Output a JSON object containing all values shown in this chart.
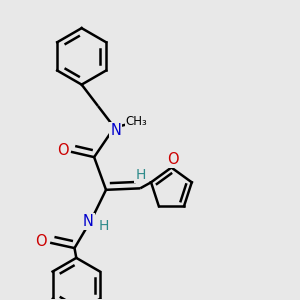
{
  "bg_color": "#e8e8e8",
  "atom_colors": {
    "C": "#000000",
    "N": "#0000cc",
    "O": "#cc0000",
    "H": "#2e8b8b"
  },
  "bond_color": "#000000",
  "bond_width": 1.8,
  "figsize": [
    3.0,
    3.0
  ],
  "dpi": 100
}
